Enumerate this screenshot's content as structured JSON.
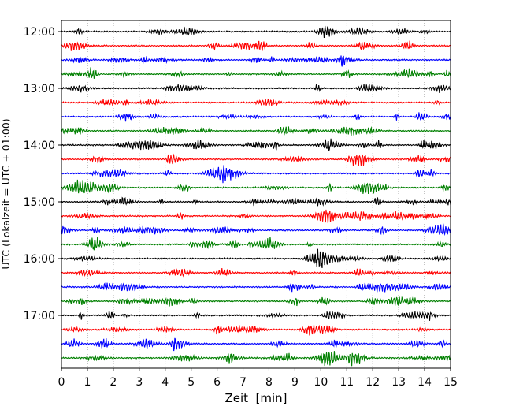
{
  "chart_data": {
    "type": "line",
    "title": "",
    "xlabel": "Zeit  [min]",
    "ylabel": "UTC (Lokalzeit = UTC + 01:00)",
    "xlim": [
      0,
      15
    ],
    "x_ticks": [
      "0",
      "1",
      "2",
      "3",
      "4",
      "5",
      "6",
      "7",
      "8",
      "9",
      "10",
      "11",
      "12",
      "13",
      "14",
      "15"
    ],
    "y_ticks": [
      "12:00",
      "13:00",
      "14:00",
      "15:00",
      "16:00",
      "17:00"
    ],
    "grid": "vertical dotted",
    "trace_colors": [
      "#000000",
      "#ff0000",
      "#0000ff",
      "#008000"
    ],
    "traces": [
      {
        "start": "12:00",
        "color": "#000000"
      },
      {
        "start": "12:15",
        "color": "#ff0000"
      },
      {
        "start": "12:30",
        "color": "#0000ff"
      },
      {
        "start": "12:45",
        "color": "#008000"
      },
      {
        "start": "13:00",
        "color": "#000000"
      },
      {
        "start": "13:15",
        "color": "#ff0000"
      },
      {
        "start": "13:30",
        "color": "#0000ff"
      },
      {
        "start": "13:45",
        "color": "#008000"
      },
      {
        "start": "14:00",
        "color": "#000000"
      },
      {
        "start": "14:15",
        "color": "#ff0000"
      },
      {
        "start": "14:30",
        "color": "#0000ff"
      },
      {
        "start": "14:45",
        "color": "#008000"
      },
      {
        "start": "15:00",
        "color": "#000000"
      },
      {
        "start": "15:15",
        "color": "#ff0000"
      },
      {
        "start": "15:30",
        "color": "#0000ff"
      },
      {
        "start": "15:45",
        "color": "#008000"
      },
      {
        "start": "16:00",
        "color": "#000000"
      },
      {
        "start": "16:15",
        "color": "#ff0000"
      },
      {
        "start": "16:30",
        "color": "#0000ff"
      },
      {
        "start": "16:45",
        "color": "#008000"
      },
      {
        "start": "17:00",
        "color": "#000000"
      },
      {
        "start": "17:15",
        "color": "#ff0000"
      },
      {
        "start": "17:30",
        "color": "#0000ff"
      },
      {
        "start": "17:45",
        "color": "#008000"
      }
    ]
  }
}
